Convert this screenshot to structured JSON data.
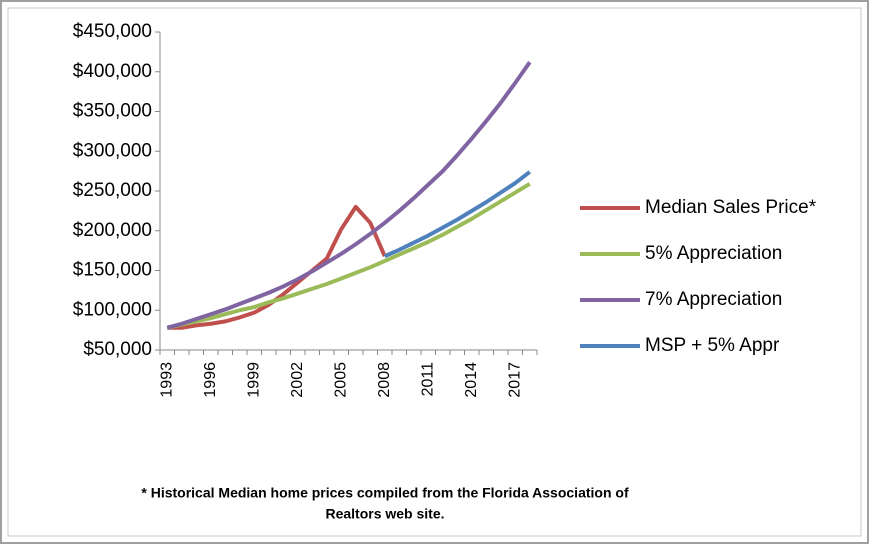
{
  "chart_data": {
    "type": "line",
    "categories": [
      "1993",
      null,
      null,
      "1996",
      null,
      null,
      "1999",
      null,
      null,
      "2002",
      null,
      null,
      "2005",
      null,
      null,
      "2008",
      null,
      null,
      "2011",
      null,
      null,
      "2014",
      null,
      null,
      "2017",
      null
    ],
    "series": [
      {
        "name": "Median Sales Price*",
        "color": "#c0504d",
        "values": [
          78000,
          78000,
          81000,
          83000,
          86000,
          91000,
          97000,
          107000,
          120000,
          135000,
          150000,
          165000,
          202000,
          230000,
          210000,
          168000,
          null,
          null,
          null,
          null,
          null,
          null,
          null,
          null,
          null,
          null
        ]
      },
      {
        "name": "5% Appreciation",
        "color": "#9bbb59",
        "values": [
          78000,
          82000,
          86000,
          90000,
          95000,
          100000,
          104000,
          110000,
          115000,
          121000,
          127000,
          133000,
          140000,
          147000,
          154000,
          162000,
          170000,
          178000,
          186000,
          195000,
          205000,
          215000,
          226000,
          237000,
          248000,
          259000
        ]
      },
      {
        "name": "7% Appreciation",
        "color": "#8064a2",
        "values": [
          78000,
          83000,
          89000,
          95000,
          101000,
          108000,
          115000,
          122000,
          130000,
          139000,
          149000,
          160000,
          171000,
          183000,
          196000,
          210000,
          225000,
          241000,
          258000,
          275000,
          295000,
          316000,
          338000,
          361000,
          386000,
          412000
        ]
      },
      {
        "name": "MSP + 5% Appr",
        "color": "#4f81bd",
        "values": [
          null,
          null,
          null,
          null,
          null,
          null,
          null,
          null,
          null,
          null,
          null,
          null,
          null,
          null,
          null,
          168000,
          176000,
          185000,
          194000,
          204000,
          214000,
          225000,
          236000,
          248000,
          260000,
          274000
        ]
      }
    ],
    "ylim": [
      50000,
      450000
    ],
    "yticks": [
      {
        "value": 50000,
        "label": "$50,000"
      },
      {
        "value": 100000,
        "label": "$100,000"
      },
      {
        "value": 150000,
        "label": "$150,000"
      },
      {
        "value": 200000,
        "label": "$200,000"
      },
      {
        "value": 250000,
        "label": "$250,000"
      },
      {
        "value": 300000,
        "label": "$300,000"
      },
      {
        "value": 350000,
        "label": "$350,000"
      },
      {
        "value": 400000,
        "label": "$400,000"
      },
      {
        "value": 450000,
        "label": "$450,000"
      }
    ],
    "footnote": [
      "* Historical Median home prices compiled from the Florida Association of",
      "Realtors web site."
    ]
  }
}
